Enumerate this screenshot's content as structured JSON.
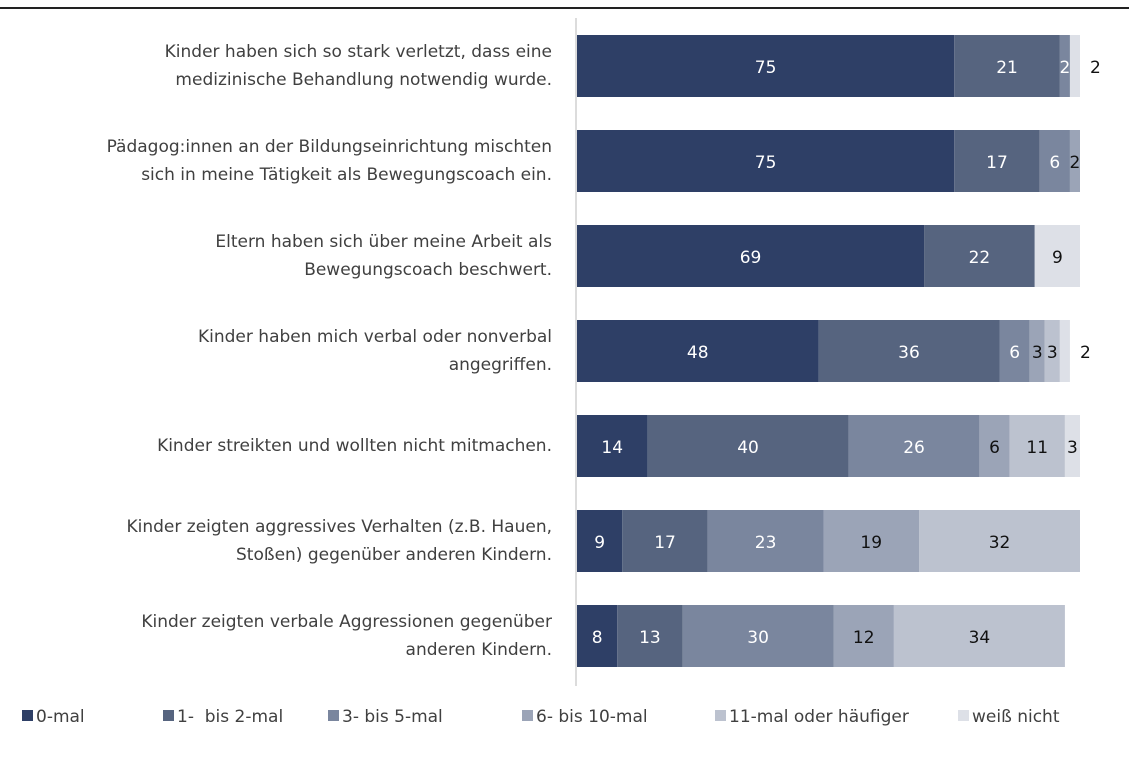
{
  "chart_data": {
    "type": "stacked_barh",
    "categories": [
      [
        "Kinder haben sich so stark verletzt, dass eine",
        "medizinische Behandlung notwendig wurde."
      ],
      [
        "Pädagog:innen an der Bildungseinrichtung mischten",
        "sich in meine Tätigkeit als Bewegungscoach ein."
      ],
      [
        "Eltern haben sich über meine Arbeit als",
        "Bewegungscoach beschwert."
      ],
      [
        "Kinder haben mich verbal oder nonverbal",
        "angegriffen."
      ],
      [
        "Kinder streikten und wollten nicht mitmachen."
      ],
      [
        "Kinder zeigten aggressives Verhalten (z.B. Hauen,",
        "Stoßen) gegenüber anderen Kindern."
      ],
      [
        "Kinder zeigten verbale Aggressionen gegenüber",
        "anderen Kindern."
      ]
    ],
    "series": [
      {
        "name": "0-mal",
        "color": "#2e3f66",
        "values": [
          75,
          75,
          69,
          48,
          14,
          9,
          8
        ]
      },
      {
        "name": "1-  bis 2-mal",
        "color": "#56647f",
        "values": [
          21,
          17,
          22,
          36,
          40,
          17,
          13
        ]
      },
      {
        "name": "3- bis 5-mal",
        "color": "#7a869e",
        "values": [
          2,
          6,
          null,
          6,
          26,
          23,
          30
        ]
      },
      {
        "name": "6- bis 10-mal",
        "color": "#9ba4b7",
        "values": [
          null,
          2,
          null,
          3,
          6,
          19,
          12
        ]
      },
      {
        "name": "11-mal oder häufiger",
        "color": "#bcc2cf",
        "values": [
          null,
          null,
          null,
          3,
          11,
          32,
          34
        ]
      },
      {
        "name": "weiß nicht",
        "color": "#dde0e7",
        "values": [
          2,
          null,
          9,
          2,
          3,
          null,
          null
        ]
      }
    ],
    "xlim": [
      0,
      100
    ]
  }
}
